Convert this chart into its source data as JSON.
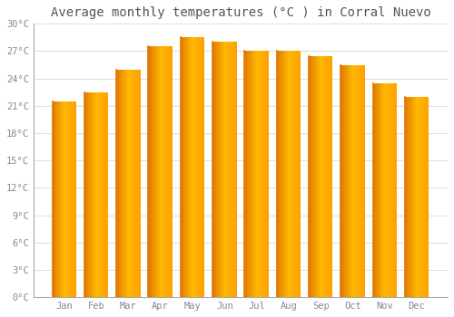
{
  "title": "Average monthly temperatures (°C ) in Corral Nuevo",
  "months": [
    "Jan",
    "Feb",
    "Mar",
    "Apr",
    "May",
    "Jun",
    "Jul",
    "Aug",
    "Sep",
    "Oct",
    "Nov",
    "Dec"
  ],
  "values": [
    21.5,
    22.5,
    25.0,
    27.5,
    28.5,
    28.0,
    27.0,
    27.0,
    26.5,
    25.5,
    23.5,
    22.0
  ],
  "ylim": [
    0,
    30
  ],
  "yticks": [
    0,
    3,
    6,
    9,
    12,
    15,
    18,
    21,
    24,
    27,
    30
  ],
  "ytick_labels": [
    "0°C",
    "3°C",
    "6°C",
    "9°C",
    "12°C",
    "15°C",
    "18°C",
    "21°C",
    "24°C",
    "27°C",
    "30°C"
  ],
  "background_color": "#ffffff",
  "grid_color": "#dddddd",
  "title_fontsize": 10,
  "tick_fontsize": 7.5,
  "tick_color": "#888888",
  "bar_color_left": "#E07800",
  "bar_color_center": "#FFB800",
  "bar_color_right": "#FFA000",
  "bar_width": 0.75,
  "n_gradient_steps": 60
}
